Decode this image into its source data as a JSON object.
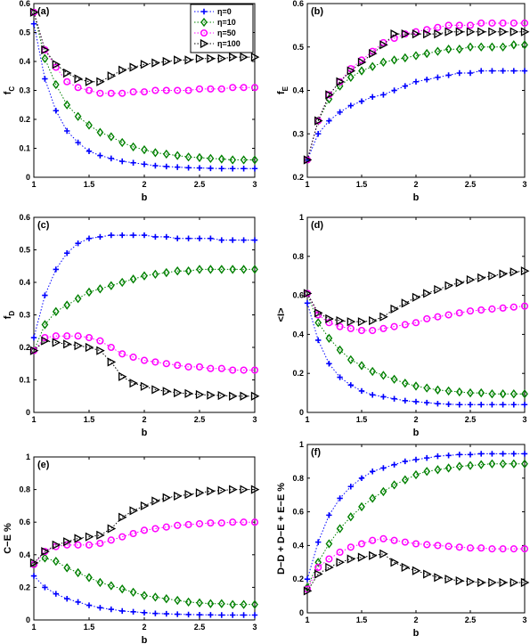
{
  "chart_data": [
    {
      "type": "line",
      "panel_label": "(a)",
      "xlabel": "b",
      "ylabel_main": "f",
      "ylabel_sub": "C",
      "xlim": [
        1,
        3
      ],
      "ylim": [
        0,
        0.6
      ],
      "xticks": [
        "1",
        "1.5",
        "2",
        "2.5",
        "3"
      ],
      "yticks": [
        "0",
        "0.1",
        "0.2",
        "0.3",
        "0.4",
        "0.5",
        "0.6"
      ],
      "legend": {
        "position": "top-right",
        "entries": [
          "η=0",
          "η=10",
          "η=50",
          "η=100"
        ]
      },
      "x": [
        1,
        1.1,
        1.2,
        1.3,
        1.4,
        1.5,
        1.6,
        1.7,
        1.8,
        1.9,
        2,
        2.1,
        2.2,
        2.3,
        2.4,
        2.5,
        2.6,
        2.7,
        2.8,
        2.9,
        3
      ],
      "series": [
        {
          "name": "η=0",
          "values": [
            0.53,
            0.34,
            0.23,
            0.16,
            0.12,
            0.09,
            0.075,
            0.065,
            0.055,
            0.05,
            0.045,
            0.04,
            0.037,
            0.035,
            0.033,
            0.032,
            0.031,
            0.03,
            0.03,
            0.03,
            0.03
          ]
        },
        {
          "name": "η=10",
          "values": [
            0.57,
            0.41,
            0.32,
            0.25,
            0.21,
            0.18,
            0.155,
            0.14,
            0.12,
            0.105,
            0.095,
            0.085,
            0.08,
            0.075,
            0.07,
            0.068,
            0.065,
            0.063,
            0.06,
            0.06,
            0.06
          ]
        },
        {
          "name": "η=50",
          "values": [
            0.57,
            0.44,
            0.38,
            0.33,
            0.31,
            0.3,
            0.29,
            0.29,
            0.29,
            0.295,
            0.295,
            0.3,
            0.3,
            0.3,
            0.3,
            0.305,
            0.305,
            0.305,
            0.31,
            0.31,
            0.31
          ]
        },
        {
          "name": "η=100",
          "values": [
            0.57,
            0.44,
            0.39,
            0.36,
            0.34,
            0.33,
            0.33,
            0.35,
            0.37,
            0.38,
            0.39,
            0.395,
            0.4,
            0.405,
            0.405,
            0.41,
            0.41,
            0.41,
            0.415,
            0.415,
            0.415
          ]
        }
      ]
    },
    {
      "type": "line",
      "panel_label": "(b)",
      "xlabel": "b",
      "ylabel_main": "f",
      "ylabel_sub": "E",
      "xlim": [
        1,
        3
      ],
      "ylim": [
        0.2,
        0.6
      ],
      "xticks": [
        "1",
        "1.5",
        "2",
        "2.5",
        "3"
      ],
      "yticks": [
        "0.2",
        "0.3",
        "0.4",
        "0.5",
        "0.6"
      ],
      "x": [
        1,
        1.1,
        1.2,
        1.3,
        1.4,
        1.5,
        1.6,
        1.7,
        1.8,
        1.9,
        2,
        2.1,
        2.2,
        2.3,
        2.4,
        2.5,
        2.6,
        2.7,
        2.8,
        2.9,
        3
      ],
      "series": [
        {
          "name": "η=0",
          "values": [
            0.24,
            0.3,
            0.33,
            0.35,
            0.365,
            0.375,
            0.385,
            0.39,
            0.4,
            0.41,
            0.42,
            0.425,
            0.43,
            0.435,
            0.44,
            0.44,
            0.445,
            0.445,
            0.445,
            0.445,
            0.445
          ]
        },
        {
          "name": "η=10",
          "values": [
            0.24,
            0.33,
            0.38,
            0.41,
            0.43,
            0.445,
            0.455,
            0.465,
            0.47,
            0.475,
            0.48,
            0.485,
            0.49,
            0.495,
            0.495,
            0.5,
            0.5,
            0.5,
            0.5,
            0.505,
            0.505
          ]
        },
        {
          "name": "η=50",
          "values": [
            0.24,
            0.33,
            0.39,
            0.42,
            0.45,
            0.47,
            0.49,
            0.51,
            0.52,
            0.53,
            0.535,
            0.54,
            0.545,
            0.55,
            0.55,
            0.55,
            0.555,
            0.555,
            0.555,
            0.555,
            0.555
          ]
        },
        {
          "name": "η=100",
          "values": [
            0.24,
            0.33,
            0.39,
            0.42,
            0.445,
            0.465,
            0.485,
            0.505,
            0.53,
            0.53,
            0.53,
            0.53,
            0.53,
            0.535,
            0.535,
            0.535,
            0.535,
            0.535,
            0.535,
            0.535,
            0.535
          ]
        }
      ]
    },
    {
      "type": "line",
      "panel_label": "(c)",
      "xlabel": "b",
      "ylabel_main": "f",
      "ylabel_sub": "D",
      "xlim": [
        1,
        3
      ],
      "ylim": [
        0,
        0.6
      ],
      "xticks": [
        "1",
        "1.5",
        "2",
        "2.5",
        "3"
      ],
      "yticks": [
        "0",
        "0.1",
        "0.2",
        "0.3",
        "0.4",
        "0.5",
        "0.6"
      ],
      "x": [
        1,
        1.1,
        1.2,
        1.3,
        1.4,
        1.5,
        1.6,
        1.7,
        1.8,
        1.9,
        2,
        2.1,
        2.2,
        2.3,
        2.4,
        2.5,
        2.6,
        2.7,
        2.8,
        2.9,
        3
      ],
      "series": [
        {
          "name": "η=0",
          "values": [
            0.23,
            0.36,
            0.44,
            0.49,
            0.52,
            0.535,
            0.54,
            0.545,
            0.545,
            0.545,
            0.545,
            0.54,
            0.54,
            0.535,
            0.535,
            0.535,
            0.535,
            0.53,
            0.53,
            0.53,
            0.53
          ]
        },
        {
          "name": "η=10",
          "values": [
            0.19,
            0.27,
            0.31,
            0.33,
            0.35,
            0.37,
            0.38,
            0.39,
            0.4,
            0.41,
            0.42,
            0.425,
            0.43,
            0.435,
            0.435,
            0.44,
            0.44,
            0.44,
            0.44,
            0.44,
            0.44
          ]
        },
        {
          "name": "η=50",
          "values": [
            0.19,
            0.23,
            0.235,
            0.235,
            0.235,
            0.23,
            0.22,
            0.2,
            0.18,
            0.17,
            0.16,
            0.155,
            0.15,
            0.145,
            0.14,
            0.14,
            0.135,
            0.135,
            0.13,
            0.13,
            0.13
          ]
        },
        {
          "name": "η=100",
          "values": [
            0.19,
            0.22,
            0.215,
            0.21,
            0.205,
            0.2,
            0.19,
            0.155,
            0.11,
            0.09,
            0.08,
            0.07,
            0.065,
            0.06,
            0.058,
            0.055,
            0.053,
            0.052,
            0.05,
            0.05,
            0.05
          ]
        }
      ]
    },
    {
      "type": "line",
      "panel_label": "(d)",
      "xlabel": "b",
      "ylabel_main": "<I>",
      "ylabel_sub": "",
      "xlim": [
        1,
        3
      ],
      "ylim": [
        0,
        1
      ],
      "xticks": [
        "1",
        "1.5",
        "2",
        "2.5",
        "3"
      ],
      "yticks": [
        "0",
        "0.2",
        "0.4",
        "0.6",
        "0.8",
        "1"
      ],
      "x": [
        1,
        1.1,
        1.2,
        1.3,
        1.4,
        1.5,
        1.6,
        1.7,
        1.8,
        1.9,
        2,
        2.1,
        2.2,
        2.3,
        2.4,
        2.5,
        2.6,
        2.7,
        2.8,
        2.9,
        3
      ],
      "series": [
        {
          "name": "η=0",
          "values": [
            0.56,
            0.37,
            0.25,
            0.18,
            0.14,
            0.11,
            0.09,
            0.08,
            0.07,
            0.06,
            0.055,
            0.05,
            0.045,
            0.042,
            0.04,
            0.04,
            0.04,
            0.04,
            0.04,
            0.04,
            0.04
          ]
        },
        {
          "name": "η=10",
          "values": [
            0.61,
            0.46,
            0.38,
            0.32,
            0.27,
            0.24,
            0.21,
            0.19,
            0.17,
            0.15,
            0.135,
            0.125,
            0.115,
            0.11,
            0.105,
            0.1,
            0.1,
            0.095,
            0.095,
            0.095,
            0.095
          ]
        },
        {
          "name": "η=50",
          "values": [
            0.61,
            0.5,
            0.46,
            0.44,
            0.43,
            0.42,
            0.42,
            0.43,
            0.44,
            0.45,
            0.46,
            0.48,
            0.49,
            0.5,
            0.51,
            0.52,
            0.525,
            0.53,
            0.535,
            0.54,
            0.545
          ]
        },
        {
          "name": "η=100",
          "values": [
            0.61,
            0.51,
            0.48,
            0.47,
            0.465,
            0.465,
            0.47,
            0.49,
            0.53,
            0.56,
            0.59,
            0.61,
            0.63,
            0.65,
            0.665,
            0.68,
            0.69,
            0.7,
            0.71,
            0.72,
            0.725
          ]
        }
      ]
    },
    {
      "type": "line",
      "panel_label": "(e)",
      "xlabel": "b",
      "ylabel_main": "C−E %",
      "ylabel_sub": "",
      "xlim": [
        1,
        3
      ],
      "ylim": [
        0,
        1
      ],
      "xticks": [
        "1",
        "1.5",
        "2",
        "2.5",
        "3"
      ],
      "yticks": [
        "0",
        "0.2",
        "0.4",
        "0.6",
        "0.8",
        "1"
      ],
      "x": [
        1,
        1.1,
        1.2,
        1.3,
        1.4,
        1.5,
        1.6,
        1.7,
        1.8,
        1.9,
        2,
        2.1,
        2.2,
        2.3,
        2.4,
        2.5,
        2.6,
        2.7,
        2.8,
        2.9,
        3
      ],
      "series": [
        {
          "name": "η=0",
          "values": [
            0.27,
            0.2,
            0.16,
            0.13,
            0.11,
            0.09,
            0.075,
            0.065,
            0.055,
            0.05,
            0.045,
            0.04,
            0.038,
            0.035,
            0.033,
            0.032,
            0.031,
            0.03,
            0.03,
            0.03,
            0.03
          ]
        },
        {
          "name": "η=10",
          "values": [
            0.34,
            0.38,
            0.36,
            0.32,
            0.29,
            0.26,
            0.23,
            0.21,
            0.19,
            0.17,
            0.15,
            0.14,
            0.13,
            0.12,
            0.11,
            0.105,
            0.1,
            0.1,
            0.095,
            0.095,
            0.095
          ]
        },
        {
          "name": "η=50",
          "values": [
            0.34,
            0.42,
            0.45,
            0.46,
            0.46,
            0.46,
            0.47,
            0.49,
            0.51,
            0.53,
            0.55,
            0.56,
            0.57,
            0.58,
            0.585,
            0.59,
            0.595,
            0.595,
            0.6,
            0.6,
            0.6
          ]
        },
        {
          "name": "η=100",
          "values": [
            0.35,
            0.42,
            0.46,
            0.48,
            0.5,
            0.51,
            0.52,
            0.56,
            0.63,
            0.67,
            0.7,
            0.73,
            0.75,
            0.76,
            0.77,
            0.78,
            0.79,
            0.795,
            0.8,
            0.8,
            0.8
          ]
        }
      ]
    },
    {
      "type": "line",
      "panel_label": "(f)",
      "xlabel": "b",
      "ylabel_main": "D−D + D−E + E−E %",
      "ylabel_sub": "",
      "xlim": [
        1,
        3
      ],
      "ylim": [
        0,
        1
      ],
      "xticks": [
        "1",
        "1.5",
        "2",
        "2.5",
        "3"
      ],
      "yticks": [
        "0",
        "0.2",
        "0.4",
        "0.6",
        "0.8",
        "1"
      ],
      "x": [
        1,
        1.1,
        1.2,
        1.3,
        1.4,
        1.5,
        1.6,
        1.7,
        1.8,
        1.9,
        2,
        2.1,
        2.2,
        2.3,
        2.4,
        2.5,
        2.6,
        2.7,
        2.8,
        2.9,
        3
      ],
      "series": [
        {
          "name": "η=0",
          "values": [
            0.2,
            0.42,
            0.58,
            0.68,
            0.75,
            0.8,
            0.84,
            0.86,
            0.88,
            0.9,
            0.91,
            0.92,
            0.93,
            0.935,
            0.94,
            0.94,
            0.945,
            0.945,
            0.945,
            0.945,
            0.945
          ]
        },
        {
          "name": "η=10",
          "values": [
            0.15,
            0.3,
            0.41,
            0.5,
            0.57,
            0.63,
            0.68,
            0.72,
            0.76,
            0.79,
            0.82,
            0.84,
            0.85,
            0.86,
            0.87,
            0.875,
            0.88,
            0.885,
            0.885,
            0.885,
            0.885
          ]
        },
        {
          "name": "η=50",
          "values": [
            0.14,
            0.27,
            0.32,
            0.36,
            0.39,
            0.41,
            0.43,
            0.44,
            0.43,
            0.42,
            0.41,
            0.405,
            0.4,
            0.395,
            0.39,
            0.385,
            0.385,
            0.38,
            0.38,
            0.38,
            0.38
          ]
        },
        {
          "name": "η=100",
          "values": [
            0.13,
            0.23,
            0.27,
            0.3,
            0.32,
            0.33,
            0.34,
            0.35,
            0.3,
            0.27,
            0.25,
            0.23,
            0.21,
            0.2,
            0.19,
            0.185,
            0.18,
            0.18,
            0.18,
            0.18,
            0.18
          ]
        }
      ]
    }
  ],
  "styles": {
    "η=0": {
      "color": "#0000ff",
      "marker": "plus"
    },
    "η=10": {
      "color": "#008000",
      "marker": "diamond"
    },
    "η=50": {
      "color": "#ff00ff",
      "marker": "circle"
    },
    "η=100": {
      "color": "#000000",
      "marker": "triangle-right"
    }
  }
}
